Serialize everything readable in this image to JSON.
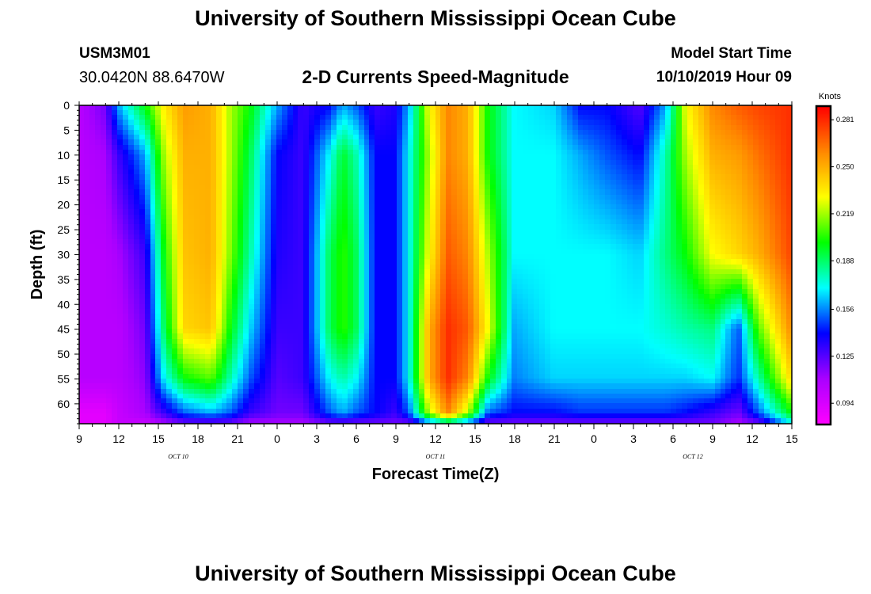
{
  "header": {
    "title": "University of Southern Mississippi Ocean Cube",
    "station_id": "USM3M01",
    "location": "30.0420N 88.6470W",
    "subtitle": "2-D Currents Speed-Magnitude",
    "model_label": "Model Start Time",
    "model_time": "10/10/2019 Hour 09"
  },
  "footer": {
    "title": "University of Southern Mississippi Ocean Cube"
  },
  "chart_data": {
    "type": "heatmap",
    "title": "2-D Currents Speed-Magnitude",
    "xlabel": "Forecast Time(Z)",
    "ylabel": "Depth (ft)",
    "x_range_hours": [
      0,
      54
    ],
    "y_range": [
      0,
      64
    ],
    "x_ticks": [
      "9",
      "12",
      "15",
      "18",
      "21",
      "0",
      "3",
      "6",
      "9",
      "12",
      "15",
      "18",
      "21",
      "0",
      "3",
      "6",
      "9",
      "12",
      "15"
    ],
    "y_ticks": [
      "0",
      "5",
      "10",
      "15",
      "20",
      "25",
      "30",
      "35",
      "40",
      "45",
      "50",
      "55",
      "60"
    ],
    "y_tick_values": [
      0,
      5,
      10,
      15,
      20,
      25,
      30,
      35,
      40,
      45,
      50,
      55,
      60
    ],
    "date_labels": [
      {
        "label": "OCT 10",
        "hour": 7.5
      },
      {
        "label": "OCT 11",
        "hour": 27
      },
      {
        "label": "OCT 12",
        "hour": 46.5
      }
    ],
    "colorbar": {
      "unit": "Knots",
      "ticks": [
        "0.281",
        "0.250",
        "0.219",
        "0.188",
        "0.156",
        "0.125",
        "0.094"
      ],
      "tick_values": [
        0.281,
        0.25,
        0.219,
        0.188,
        0.156,
        0.125,
        0.094
      ],
      "range": [
        0.08,
        0.29
      ],
      "colors": [
        "#ff00ff",
        "#aa00ff",
        "#0000ff",
        "#00ffff",
        "#00ff00",
        "#ffff00",
        "#ff8800",
        "#ff0000"
      ]
    },
    "field_description_depth_knots": [
      0,
      10,
      30,
      45,
      55,
      62,
      64
    ],
    "time_profiles": [
      {
        "hour": 0,
        "speed": [
          0.105,
          0.105,
          0.105,
          0.105,
          0.105,
          0.09,
          0.09
        ]
      },
      {
        "hour": 2,
        "speed": [
          0.12,
          0.11,
          0.105,
          0.105,
          0.105,
          0.09,
          0.09
        ]
      },
      {
        "hour": 3,
        "speed": [
          0.16,
          0.13,
          0.11,
          0.105,
          0.105,
          0.1,
          0.1
        ]
      },
      {
        "hour": 5,
        "speed": [
          0.2,
          0.16,
          0.13,
          0.12,
          0.115,
          0.11,
          0.1
        ]
      },
      {
        "hour": 6.5,
        "speed": [
          0.235,
          0.22,
          0.2,
          0.19,
          0.17,
          0.13,
          0.11
        ]
      },
      {
        "hour": 8,
        "speed": [
          0.255,
          0.25,
          0.245,
          0.24,
          0.2,
          0.15,
          0.12
        ]
      },
      {
        "hour": 10,
        "speed": [
          0.25,
          0.25,
          0.25,
          0.245,
          0.21,
          0.16,
          0.12
        ]
      },
      {
        "hour": 11.5,
        "speed": [
          0.22,
          0.22,
          0.215,
          0.2,
          0.18,
          0.15,
          0.12
        ]
      },
      {
        "hour": 13,
        "speed": [
          0.2,
          0.19,
          0.18,
          0.165,
          0.15,
          0.13,
          0.11
        ]
      },
      {
        "hour": 15,
        "speed": [
          0.16,
          0.14,
          0.135,
          0.13,
          0.125,
          0.12,
          0.11
        ]
      },
      {
        "hour": 17,
        "speed": [
          0.13,
          0.13,
          0.13,
          0.13,
          0.13,
          0.12,
          0.11
        ]
      },
      {
        "hour": 19,
        "speed": [
          0.14,
          0.17,
          0.19,
          0.19,
          0.17,
          0.15,
          0.12
        ]
      },
      {
        "hour": 20,
        "speed": [
          0.16,
          0.195,
          0.205,
          0.205,
          0.18,
          0.16,
          0.12
        ]
      },
      {
        "hour": 21,
        "speed": [
          0.15,
          0.18,
          0.19,
          0.19,
          0.17,
          0.15,
          0.12
        ]
      },
      {
        "hour": 22.5,
        "speed": [
          0.13,
          0.14,
          0.14,
          0.14,
          0.14,
          0.14,
          0.12
        ]
      },
      {
        "hour": 24,
        "speed": [
          0.135,
          0.14,
          0.14,
          0.14,
          0.14,
          0.13,
          0.12
        ]
      },
      {
        "hour": 25,
        "speed": [
          0.16,
          0.17,
          0.17,
          0.17,
          0.17,
          0.15,
          0.12
        ]
      },
      {
        "hour": 26.5,
        "speed": [
          0.23,
          0.22,
          0.23,
          0.25,
          0.25,
          0.22,
          0.15
        ]
      },
      {
        "hour": 28,
        "speed": [
          0.26,
          0.26,
          0.27,
          0.28,
          0.28,
          0.26,
          0.17
        ]
      },
      {
        "hour": 29.5,
        "speed": [
          0.25,
          0.25,
          0.26,
          0.27,
          0.26,
          0.22,
          0.15
        ]
      },
      {
        "hour": 31,
        "speed": [
          0.2,
          0.2,
          0.22,
          0.23,
          0.2,
          0.15,
          0.12
        ]
      },
      {
        "hour": 33,
        "speed": [
          0.17,
          0.17,
          0.17,
          0.16,
          0.155,
          0.14,
          0.12
        ]
      },
      {
        "hour": 36,
        "speed": [
          0.165,
          0.17,
          0.17,
          0.17,
          0.165,
          0.14,
          0.12
        ]
      },
      {
        "hour": 38,
        "speed": [
          0.14,
          0.16,
          0.17,
          0.17,
          0.165,
          0.145,
          0.12
        ]
      },
      {
        "hour": 40,
        "speed": [
          0.14,
          0.15,
          0.17,
          0.17,
          0.165,
          0.145,
          0.12
        ]
      },
      {
        "hour": 42.5,
        "speed": [
          0.125,
          0.14,
          0.165,
          0.17,
          0.165,
          0.145,
          0.12
        ]
      },
      {
        "hour": 44.5,
        "speed": [
          0.16,
          0.18,
          0.185,
          0.175,
          0.165,
          0.145,
          0.12
        ]
      },
      {
        "hour": 46,
        "speed": [
          0.23,
          0.22,
          0.2,
          0.18,
          0.165,
          0.14,
          0.12
        ]
      },
      {
        "hour": 48,
        "speed": [
          0.26,
          0.25,
          0.23,
          0.185,
          0.17,
          0.13,
          0.12
        ]
      },
      {
        "hour": 50,
        "speed": [
          0.27,
          0.255,
          0.24,
          0.15,
          0.145,
          0.12,
          0.11
        ]
      },
      {
        "hour": 51.5,
        "speed": [
          0.275,
          0.265,
          0.25,
          0.21,
          0.18,
          0.15,
          0.12
        ]
      },
      {
        "hour": 54,
        "speed": [
          0.28,
          0.28,
          0.275,
          0.26,
          0.24,
          0.2,
          0.17
        ]
      }
    ]
  }
}
